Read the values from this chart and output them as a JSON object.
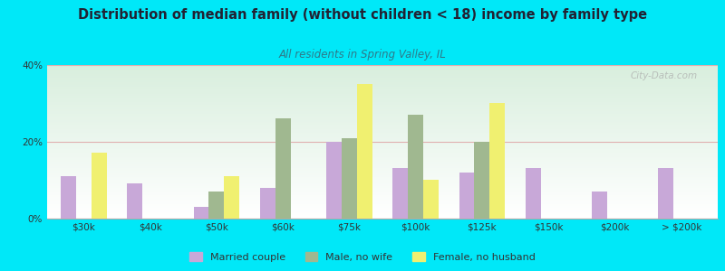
{
  "title": "Distribution of median family (without children < 18) income by family type",
  "subtitle": "All residents in Spring Valley, IL",
  "categories": [
    "$30k",
    "$40k",
    "$50k",
    "$60k",
    "$75k",
    "$100k",
    "$125k",
    "$150k",
    "$200k",
    "> $200k"
  ],
  "married_couple": [
    11,
    9,
    3,
    8,
    20,
    13,
    12,
    13,
    7,
    13
  ],
  "male_no_wife": [
    0,
    0,
    7,
    26,
    21,
    27,
    20,
    0,
    0,
    0
  ],
  "female_no_husband": [
    17,
    0,
    11,
    0,
    35,
    10,
    30,
    0,
    0,
    0
  ],
  "bar_colors": {
    "married_couple": "#c8a8d8",
    "male_no_wife": "#a0b890",
    "female_no_husband": "#f0f070"
  },
  "background_outer": "#00e8f8",
  "background_plot_top": "#d8eedd",
  "background_plot_bottom": "#ffffff",
  "title_color": "#222233",
  "subtitle_color": "#2e7a8a",
  "axis_color": "#333333",
  "grid_color": "#e0b0b0",
  "ylim": [
    0,
    40
  ],
  "yticks": [
    0,
    20,
    40
  ],
  "ytick_labels": [
    "0%",
    "20%",
    "40%"
  ],
  "legend_labels": [
    "Married couple",
    "Male, no wife",
    "Female, no husband"
  ],
  "watermark": "© City-Data.com",
  "bar_width": 0.23
}
